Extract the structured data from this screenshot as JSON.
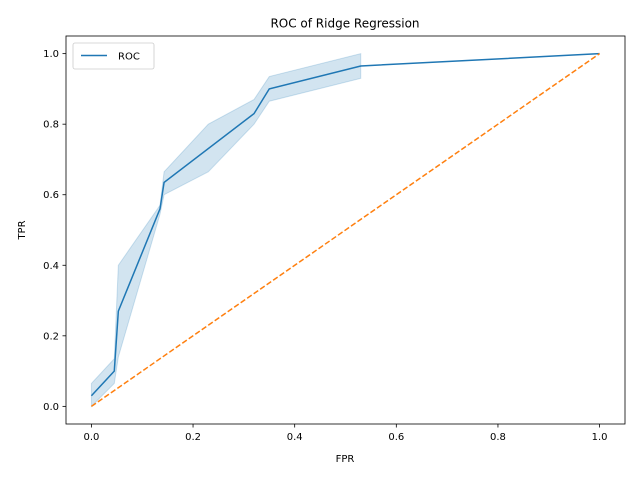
{
  "chart_data": {
    "type": "line",
    "title": "ROC of Ridge Regression",
    "xlabel": "FPR",
    "ylabel": "TPR",
    "xlim": [
      -0.05,
      1.05
    ],
    "ylim": [
      -0.05,
      1.05
    ],
    "x_ticks": [
      "0.0",
      "0.2",
      "0.4",
      "0.6",
      "0.8",
      "1.0"
    ],
    "y_ticks": [
      "0.0",
      "0.2",
      "0.4",
      "0.6",
      "0.8",
      "1.0"
    ],
    "grid": false,
    "legend_position": "top-left",
    "series": [
      {
        "name": "ROC",
        "color": "#1f77b4",
        "style": "solid",
        "x": [
          0.0,
          0.045,
          0.053,
          0.135,
          0.143,
          0.32,
          0.35,
          0.53,
          1.0
        ],
        "y": [
          0.03,
          0.1,
          0.27,
          0.56,
          0.635,
          0.83,
          0.9,
          0.965,
          1.0
        ],
        "band": {
          "color": "#1f77b4",
          "x": [
            0.0,
            0.045,
            0.053,
            0.135,
            0.143,
            0.23,
            0.32,
            0.35,
            0.53
          ],
          "lower": [
            0.0,
            0.065,
            0.14,
            0.545,
            0.6,
            0.665,
            0.8,
            0.865,
            0.93
          ],
          "upper": [
            0.065,
            0.135,
            0.4,
            0.57,
            0.665,
            0.8,
            0.87,
            0.935,
            1.0
          ]
        }
      },
      {
        "color": "#ff7f0e",
        "style": "dashed",
        "x": [
          0.0,
          1.0
        ],
        "y": [
          0.0,
          1.0
        ]
      }
    ]
  }
}
